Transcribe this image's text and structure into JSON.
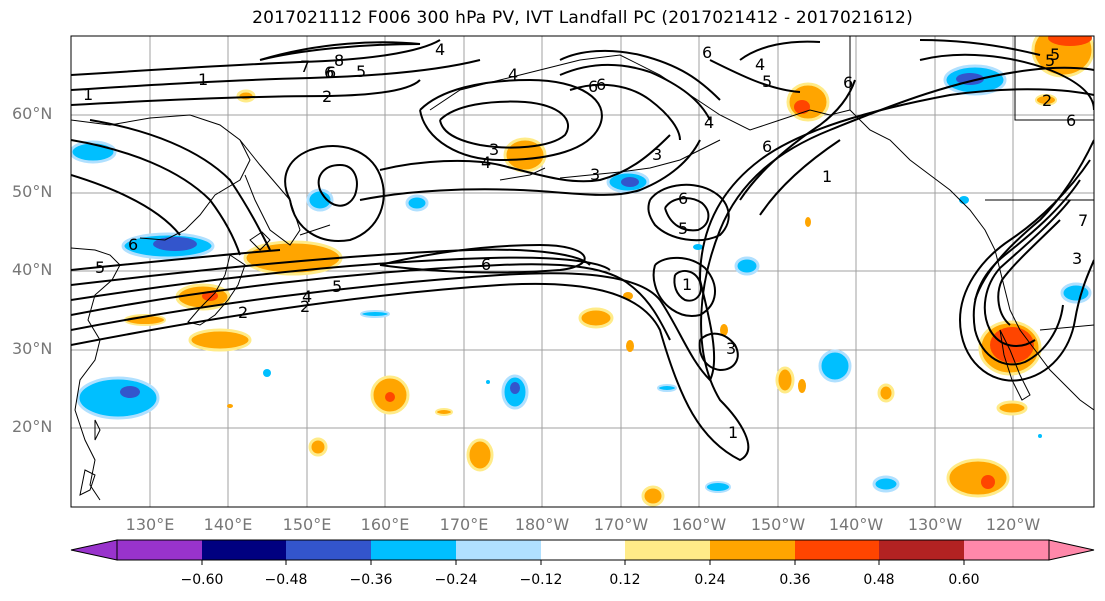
{
  "title": "2017021112 F006 300 hPa PV, IVT Landfall PC (2017021412 - 2017021612)",
  "map": {
    "lat_labels": [
      "60°N",
      "50°N",
      "40°N",
      "30°N",
      "20°N"
    ],
    "lon_labels": [
      "130°E",
      "140°E",
      "150°E",
      "160°E",
      "170°E",
      "180°W",
      "170°W",
      "160°W",
      "150°W",
      "140°W",
      "130°W",
      "120°W"
    ],
    "pv_contour_labels": [
      "1",
      "7",
      "6",
      "8",
      "5",
      "4",
      "2",
      "6",
      "5",
      "4",
      "6",
      "1",
      "4",
      "3",
      "3",
      "5",
      "6",
      "6",
      "5",
      "1",
      "6",
      "1",
      "2",
      "2",
      "6",
      "4",
      "5",
      "3",
      "4",
      "6",
      "5",
      "3",
      "1",
      "7",
      "3",
      "2",
      "6",
      "6",
      "4",
      "5",
      "6"
    ],
    "colors": {
      "land_outline": "#000000",
      "contour": "#000000",
      "grid": "#a0a0a0"
    }
  },
  "colorbar": {
    "colors": [
      "#9933cc",
      "#000080",
      "#3355cc",
      "#00bfff",
      "#b0e0ff",
      "#ffffff",
      "#ffeb88",
      "#ffa500",
      "#ff4500",
      "#b22222",
      "#ff88aa"
    ],
    "ticks": [
      "−0.60",
      "−0.48",
      "−0.36",
      "−0.24",
      "−0.12",
      "0.12",
      "0.24",
      "0.36",
      "0.48",
      "0.60"
    ]
  }
}
